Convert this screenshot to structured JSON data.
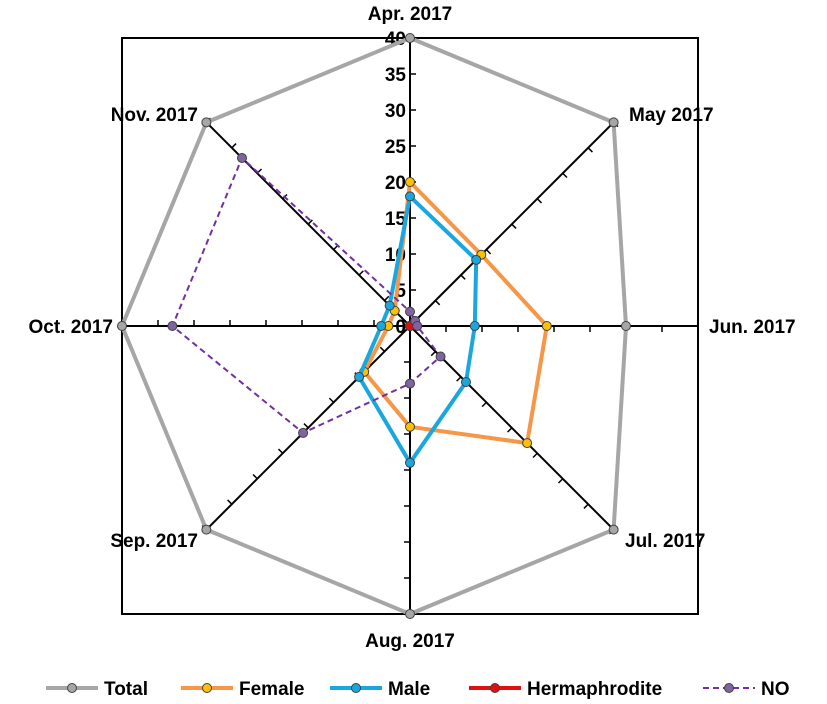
{
  "chart_data": {
    "type": "radar",
    "categories": [
      "Apr. 2017",
      "May 2017",
      "Jun. 2017",
      "Jul. 2017",
      "Aug. 2017",
      "Sep. 2017",
      "Oct. 2017",
      "Nov. 2017"
    ],
    "r_ticks": [
      "0",
      "5",
      "10",
      "15",
      "20",
      "25",
      "30",
      "35",
      "40"
    ],
    "rlim": [
      0,
      40
    ],
    "series": [
      {
        "name": "Total",
        "color": "#a6a6a6",
        "marker_fill": "#a6a6a6",
        "dashed": false,
        "values": [
          40,
          40,
          30,
          40,
          40,
          40,
          40,
          40
        ]
      },
      {
        "name": "Female",
        "color": "#f79646",
        "marker_fill": "#ffc000",
        "dashed": false,
        "values": [
          20,
          14,
          19,
          23,
          14,
          9,
          3,
          3
        ]
      },
      {
        "name": "Male",
        "color": "#1aa7e0",
        "marker_fill": "#1aa7e0",
        "dashed": false,
        "values": [
          18,
          13,
          9,
          11,
          19,
          10,
          4,
          4
        ]
      },
      {
        "name": "Hermaphrodite",
        "color": "#e01010",
        "marker_fill": "#e01010",
        "dashed": false,
        "values": [
          0,
          0,
          0,
          0,
          0,
          0,
          0,
          0
        ]
      },
      {
        "name": "NO",
        "color": "#7030a0",
        "marker_fill": "#8064a2",
        "dashed": true,
        "values": [
          2,
          1,
          1,
          6,
          8,
          21,
          33,
          33
        ]
      }
    ],
    "legend_position": "bottom"
  }
}
